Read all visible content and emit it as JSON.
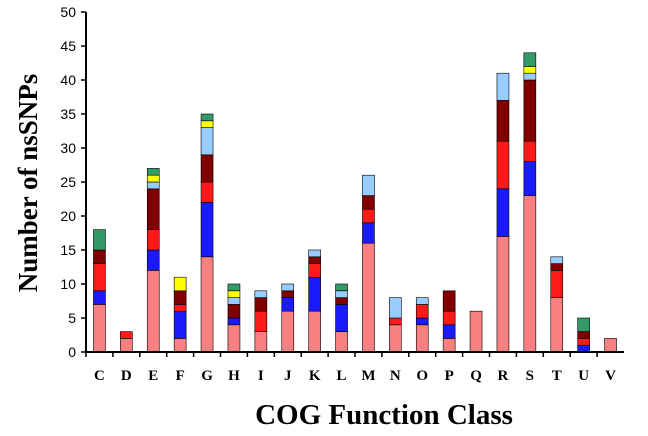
{
  "chart_data": {
    "type": "bar",
    "stacked": true,
    "xlabel": "COG Function Class",
    "ylabel": "Number of nsSNPs",
    "ylim": [
      0,
      50
    ],
    "yticks": [
      0,
      5,
      10,
      15,
      20,
      25,
      30,
      35,
      40,
      45,
      50
    ],
    "grid": false,
    "categories": [
      "C",
      "D",
      "E",
      "F",
      "G",
      "H",
      "I",
      "J",
      "K",
      "L",
      "M",
      "N",
      "O",
      "P",
      "Q",
      "R",
      "S",
      "T",
      "U",
      "V"
    ],
    "series": [
      {
        "color": "#f88080",
        "values": [
          7,
          2,
          12,
          2,
          14,
          4,
          3,
          6,
          6,
          3,
          16,
          4,
          4,
          2,
          6,
          17,
          23,
          8,
          0,
          2
        ]
      },
      {
        "color": "#1a1aff",
        "values": [
          2,
          0,
          3,
          4,
          8,
          1,
          0,
          2,
          5,
          4,
          3,
          0,
          1,
          2,
          0,
          7,
          5,
          0,
          1,
          0
        ]
      },
      {
        "color": "#ff1a1a",
        "values": [
          4,
          1,
          3,
          1,
          3,
          0,
          3,
          0,
          2,
          0,
          2,
          1,
          2,
          2,
          0,
          7,
          3,
          4,
          1,
          0
        ]
      },
      {
        "color": "#800000",
        "values": [
          2,
          0,
          6,
          2,
          4,
          2,
          2,
          1,
          1,
          1,
          2,
          0,
          0,
          3,
          0,
          6,
          9,
          1,
          1,
          0
        ]
      },
      {
        "color": "#99ccff",
        "values": [
          0,
          0,
          1,
          0,
          4,
          1,
          1,
          1,
          1,
          1,
          3,
          3,
          1,
          0,
          0,
          4,
          1,
          1,
          0,
          0
        ]
      },
      {
        "color": "#ffff00",
        "values": [
          0,
          0,
          1,
          2,
          1,
          1,
          0,
          0,
          0,
          0,
          0,
          0,
          0,
          0,
          0,
          0,
          1,
          0,
          0,
          0
        ]
      },
      {
        "color": "#339966",
        "values": [
          3,
          0,
          1,
          0,
          1,
          1,
          0,
          0,
          0,
          1,
          0,
          0,
          0,
          0,
          0,
          0,
          2,
          0,
          2,
          0
        ]
      }
    ]
  }
}
